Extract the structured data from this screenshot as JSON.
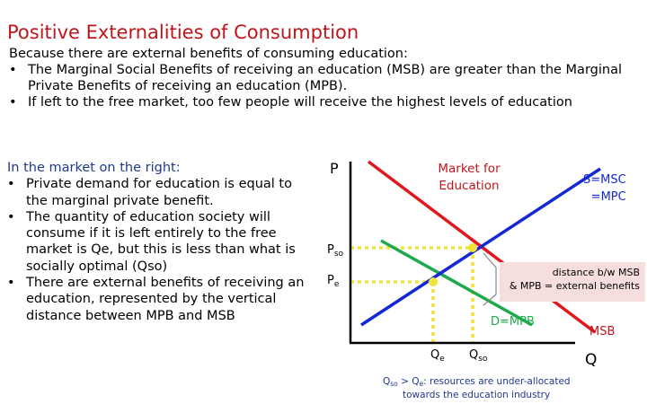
{
  "slide": {
    "title": "Positive Externalities of Consumption",
    "intro": "Because there are external benefits of consuming education:",
    "bullets": [
      "The Marginal Social Benefits of receiving an education (MSB) are greater than the Marginal Private Benefits of receiving an education (MPB).",
      "If left to the free market, too few people will receive the highest levels of education"
    ],
    "left_lead": "In the market on the right:",
    "left_bullets": [
      "Private demand for education is equal to the marginal private benefit.",
      "The quantity of education society will consume if it is left entirely to the free market is Qe, but this is less than what is socially optimal (Qso)",
      "There are external benefits of receiving an education, represented by the vertical distance between MPB and MSB"
    ]
  },
  "diagram": {
    "axis_p": "P",
    "axis_q": "Q",
    "market_title": "Market for Education",
    "supply_label_1": "S=MSC",
    "supply_label_2": "=MPC",
    "demand_label": "D=MPB",
    "msb_label": "MSB",
    "pso_main": "P",
    "pso_sub": "so",
    "pe_main": "P",
    "pe_sub": "e",
    "qe_main": "Q",
    "qe_sub": "e",
    "qso_main": "Q",
    "qso_sub": "so",
    "callout_1": "distance b/w MSB",
    "callout_2": "& MPB = external benefits",
    "footnote_q1": "Q",
    "footnote_q1_sub": "so",
    "footnote_mid": " > Q",
    "footnote_q2_sub": "e",
    "footnote_rest": ": resources are under-allocated",
    "footnote_line2": "towards the education industry",
    "colors": {
      "title": "#c0161b",
      "supply": "#1428d6",
      "msb": "#e0181e",
      "mpb": "#1fa94c",
      "guide": "#f2e33a",
      "callout_bg": "#f6dede",
      "footnote": "#1f3a8a",
      "lead": "#1f3a8a"
    }
  }
}
